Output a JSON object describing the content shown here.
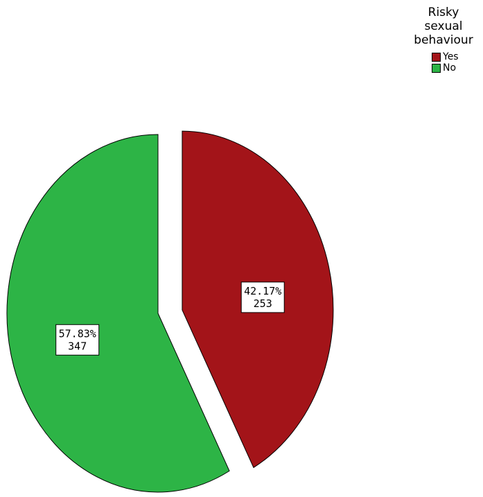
{
  "chart_data": {
    "type": "pie",
    "legend": {
      "title_lines": [
        "Risky",
        "sexual",
        "behaviour"
      ],
      "placement": "top-right"
    },
    "slices": [
      {
        "label": "Yes",
        "value": 253,
        "percent_label": "42.17%",
        "color": "#a31419",
        "exploded": true
      },
      {
        "label": "No",
        "value": 347,
        "percent_label": "57.83%",
        "color": "#2db446",
        "exploded": false
      }
    ]
  }
}
